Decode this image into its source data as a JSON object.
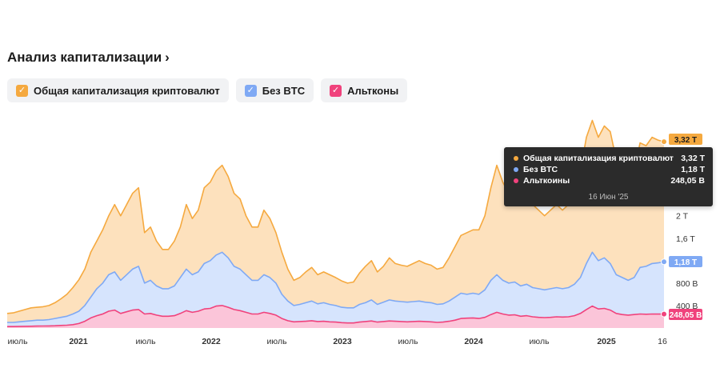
{
  "header": {
    "title": "Анализ капитализации",
    "chevron": "›"
  },
  "legend": [
    {
      "label": "Общая капитализация криптовалют",
      "color": "#f5a93f",
      "checked": true
    },
    {
      "label": "Без BTC",
      "color": "#7fa9f4",
      "checked": true
    },
    {
      "label": "Альтконы",
      "color": "#f0427c",
      "checked": true
    }
  ],
  "tooltip": {
    "rows": [
      {
        "label": "Общая капитализация криптовалют",
        "value": "3,32 T",
        "color": "#f5a93f"
      },
      {
        "label": "Без BTC",
        "value": "1,18 T",
        "color": "#7fa9f4"
      },
      {
        "label": "Альткоины",
        "value": "248,05 B",
        "color": "#f0427c"
      }
    ],
    "date": "16 Июн '25"
  },
  "chart_data": {
    "type": "area",
    "x_start": "2020-06",
    "x_end": "2025-06-16",
    "x_tick_labels": [
      "июль",
      "2021",
      "июль",
      "2022",
      "июль",
      "2023",
      "июль",
      "2024",
      "июль",
      "2025",
      "16"
    ],
    "y_tick_labels": [
      "400 B",
      "800 B",
      "1,2 T",
      "1,6 T",
      "2 T"
    ],
    "ylim": [
      0,
      3.85
    ],
    "y_unit": "T",
    "series": [
      {
        "name": "Общая капитализация криптовалют",
        "color": "#f5a93f",
        "fill": "#fde1bd",
        "end_label": "3,32 T",
        "values": [
          0.26,
          0.27,
          0.3,
          0.33,
          0.36,
          0.37,
          0.38,
          0.4,
          0.45,
          0.52,
          0.6,
          0.72,
          0.86,
          1.05,
          1.35,
          1.55,
          1.75,
          2.0,
          2.2,
          2.0,
          2.2,
          2.4,
          2.5,
          1.7,
          1.8,
          1.55,
          1.4,
          1.4,
          1.55,
          1.8,
          2.2,
          1.95,
          2.1,
          2.5,
          2.6,
          2.8,
          2.9,
          2.7,
          2.4,
          2.3,
          2.0,
          1.8,
          1.8,
          2.1,
          1.95,
          1.7,
          1.35,
          1.05,
          0.85,
          0.9,
          1.0,
          1.08,
          0.95,
          1.0,
          0.95,
          0.9,
          0.84,
          0.8,
          0.82,
          0.98,
          1.1,
          1.2,
          1.0,
          1.1,
          1.25,
          1.15,
          1.12,
          1.1,
          1.15,
          1.2,
          1.15,
          1.12,
          1.05,
          1.08,
          1.25,
          1.45,
          1.65,
          1.7,
          1.75,
          1.75,
          2.0,
          2.5,
          2.9,
          2.6,
          2.4,
          2.5,
          2.3,
          2.4,
          2.2,
          2.1,
          2.0,
          2.1,
          2.2,
          2.1,
          2.2,
          2.4,
          2.8,
          3.4,
          3.7,
          3.4,
          3.6,
          3.5,
          3.0,
          2.8,
          2.7,
          2.8,
          3.3,
          3.25,
          3.4,
          3.35,
          3.32
        ]
      },
      {
        "name": "Без BTC",
        "color": "#7fa9f4",
        "fill": "#d6e4fd",
        "end_label": "1,18 T",
        "values": [
          0.1,
          0.1,
          0.11,
          0.12,
          0.13,
          0.14,
          0.14,
          0.15,
          0.17,
          0.19,
          0.21,
          0.25,
          0.3,
          0.4,
          0.55,
          0.7,
          0.8,
          0.95,
          1.0,
          0.85,
          0.95,
          1.05,
          1.1,
          0.8,
          0.85,
          0.75,
          0.7,
          0.7,
          0.75,
          0.9,
          1.05,
          0.95,
          1.0,
          1.15,
          1.2,
          1.3,
          1.35,
          1.25,
          1.1,
          1.05,
          0.95,
          0.85,
          0.85,
          0.95,
          0.9,
          0.8,
          0.6,
          0.48,
          0.4,
          0.42,
          0.45,
          0.48,
          0.43,
          0.45,
          0.42,
          0.4,
          0.37,
          0.36,
          0.36,
          0.42,
          0.45,
          0.5,
          0.42,
          0.46,
          0.5,
          0.48,
          0.47,
          0.46,
          0.47,
          0.48,
          0.46,
          0.45,
          0.42,
          0.43,
          0.48,
          0.55,
          0.62,
          0.6,
          0.62,
          0.6,
          0.68,
          0.85,
          0.95,
          0.85,
          0.8,
          0.82,
          0.75,
          0.78,
          0.72,
          0.7,
          0.68,
          0.7,
          0.72,
          0.7,
          0.72,
          0.78,
          0.9,
          1.15,
          1.35,
          1.2,
          1.25,
          1.15,
          0.95,
          0.9,
          0.85,
          0.9,
          1.08,
          1.1,
          1.15,
          1.16,
          1.18
        ]
      },
      {
        "name": "Альтконы",
        "color": "#f0427c",
        "fill": "#fbc5d9",
        "end_label": "248,05 B",
        "values": [
          0.025,
          0.025,
          0.027,
          0.03,
          0.032,
          0.034,
          0.035,
          0.037,
          0.04,
          0.045,
          0.05,
          0.06,
          0.08,
          0.12,
          0.18,
          0.22,
          0.25,
          0.3,
          0.32,
          0.26,
          0.29,
          0.32,
          0.33,
          0.25,
          0.26,
          0.23,
          0.21,
          0.21,
          0.22,
          0.26,
          0.31,
          0.28,
          0.3,
          0.34,
          0.35,
          0.39,
          0.4,
          0.37,
          0.33,
          0.31,
          0.28,
          0.25,
          0.25,
          0.28,
          0.26,
          0.23,
          0.17,
          0.13,
          0.11,
          0.115,
          0.12,
          0.13,
          0.115,
          0.12,
          0.11,
          0.105,
          0.095,
          0.09,
          0.09,
          0.105,
          0.115,
          0.125,
          0.105,
          0.115,
          0.125,
          0.12,
          0.115,
          0.11,
          0.115,
          0.12,
          0.115,
          0.11,
          0.1,
          0.105,
          0.12,
          0.14,
          0.17,
          0.175,
          0.18,
          0.17,
          0.19,
          0.24,
          0.28,
          0.25,
          0.23,
          0.235,
          0.21,
          0.22,
          0.2,
          0.19,
          0.185,
          0.19,
          0.2,
          0.195,
          0.2,
          0.22,
          0.26,
          0.33,
          0.39,
          0.34,
          0.35,
          0.32,
          0.26,
          0.24,
          0.23,
          0.24,
          0.25,
          0.245,
          0.25,
          0.248,
          0.248
        ]
      }
    ]
  }
}
